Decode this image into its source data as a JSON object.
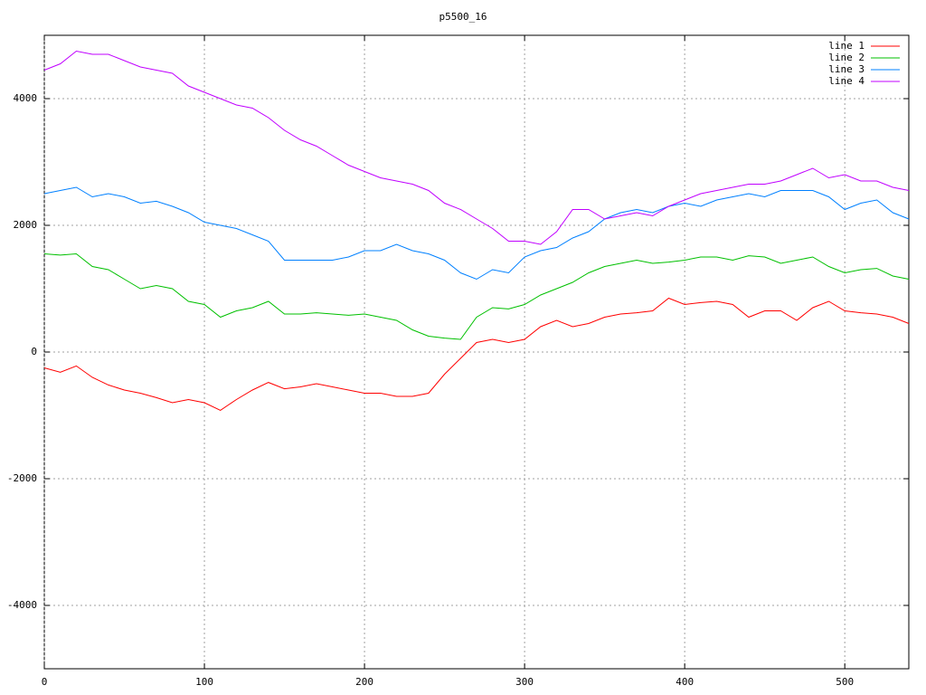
{
  "chart_data": {
    "type": "line",
    "title": "p5500_16",
    "x": [
      0,
      10,
      20,
      30,
      40,
      50,
      60,
      70,
      80,
      90,
      100,
      110,
      120,
      130,
      140,
      150,
      160,
      170,
      180,
      190,
      200,
      210,
      220,
      230,
      240,
      250,
      260,
      270,
      280,
      290,
      300,
      310,
      320,
      330,
      340,
      350,
      360,
      370,
      380,
      390,
      400,
      410,
      420,
      430,
      440,
      450,
      460,
      470,
      480,
      490,
      500,
      510,
      520,
      530,
      540
    ],
    "series": [
      {
        "name": "line 1",
        "color": "#ff0000",
        "values": [
          -250,
          -320,
          -220,
          -400,
          -520,
          -600,
          -650,
          -720,
          -800,
          -750,
          -800,
          -920,
          -750,
          -600,
          -480,
          -580,
          -550,
          -500,
          -550,
          -600,
          -650,
          -650,
          -700,
          -700,
          -650,
          -350,
          -100,
          150,
          200,
          150,
          200,
          400,
          500,
          400,
          450,
          550,
          600,
          620,
          650,
          850,
          750,
          780,
          800,
          750,
          550,
          650,
          650,
          500,
          700,
          800,
          650,
          620,
          600,
          550,
          450
        ]
      },
      {
        "name": "line 2",
        "color": "#00c000",
        "values": [
          1550,
          1530,
          1550,
          1350,
          1300,
          1150,
          1000,
          1050,
          1000,
          800,
          750,
          550,
          650,
          700,
          800,
          600,
          600,
          620,
          600,
          580,
          600,
          550,
          500,
          350,
          250,
          220,
          200,
          550,
          700,
          680,
          750,
          900,
          1000,
          1100,
          1250,
          1350,
          1400,
          1450,
          1400,
          1420,
          1450,
          1500,
          1500,
          1450,
          1520,
          1500,
          1400,
          1450,
          1500,
          1350,
          1250,
          1300,
          1320,
          1200,
          1150
        ]
      },
      {
        "name": "line 3",
        "color": "#0080ff",
        "values": [
          2500,
          2550,
          2600,
          2450,
          2500,
          2450,
          2350,
          2380,
          2300,
          2200,
          2050,
          2000,
          1950,
          1850,
          1750,
          1450,
          1450,
          1450,
          1450,
          1500,
          1600,
          1600,
          1700,
          1600,
          1550,
          1450,
          1250,
          1150,
          1300,
          1250,
          1500,
          1600,
          1650,
          1800,
          1900,
          2100,
          2200,
          2250,
          2200,
          2300,
          2350,
          2300,
          2400,
          2450,
          2500,
          2450,
          2550,
          2550,
          2550,
          2450,
          2250,
          2350,
          2400,
          2200,
          2100
        ]
      },
      {
        "name": "line 4",
        "color": "#c000ff",
        "values": [
          4450,
          4550,
          4750,
          4700,
          4700,
          4600,
          4500,
          4450,
          4400,
          4200,
          4100,
          4000,
          3900,
          3850,
          3700,
          3500,
          3350,
          3250,
          3100,
          2950,
          2850,
          2750,
          2700,
          2650,
          2550,
          2350,
          2250,
          2100,
          1950,
          1750,
          1750,
          1700,
          1900,
          2250,
          2250,
          2100,
          2150,
          2200,
          2150,
          2300,
          2400,
          2500,
          2550,
          2600,
          2650,
          2650,
          2700,
          2800,
          2900,
          2750,
          2800,
          2700,
          2700,
          2600,
          2550
        ]
      }
    ],
    "xlim": [
      0,
      540
    ],
    "ylim": [
      -5000,
      5000
    ],
    "xticks": [
      0,
      100,
      200,
      300,
      400,
      500
    ],
    "yticks": [
      -4000,
      -2000,
      0,
      2000,
      4000
    ],
    "grid": true,
    "legend": "top-right"
  }
}
